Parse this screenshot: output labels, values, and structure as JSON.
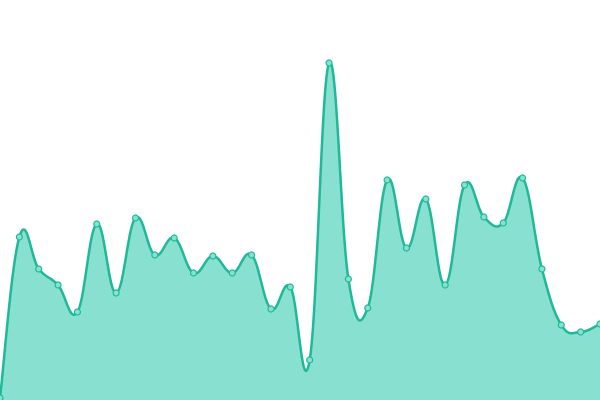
{
  "chart_data": {
    "type": "area",
    "x": [
      0,
      1,
      2,
      3,
      4,
      5,
      6,
      7,
      8,
      9,
      10,
      11,
      12,
      13,
      14,
      15,
      16,
      17,
      18,
      19,
      20,
      21,
      22,
      23,
      24,
      25,
      26,
      27,
      28,
      29,
      30,
      31
    ],
    "series": [
      {
        "color": "#1fb997",
        "fill": "#88e0d0",
        "values": [
          2,
          163,
          131,
          115,
          88,
          176,
          107,
          182,
          145,
          162,
          127,
          144,
          127,
          145,
          91,
          113,
          40,
          337,
          121,
          92,
          220,
          152,
          201,
          115,
          215,
          183,
          177,
          222,
          131,
          75,
          68,
          76
        ]
      }
    ],
    "xlim": [
      0,
      31
    ],
    "ylim": [
      0,
      400
    ]
  }
}
